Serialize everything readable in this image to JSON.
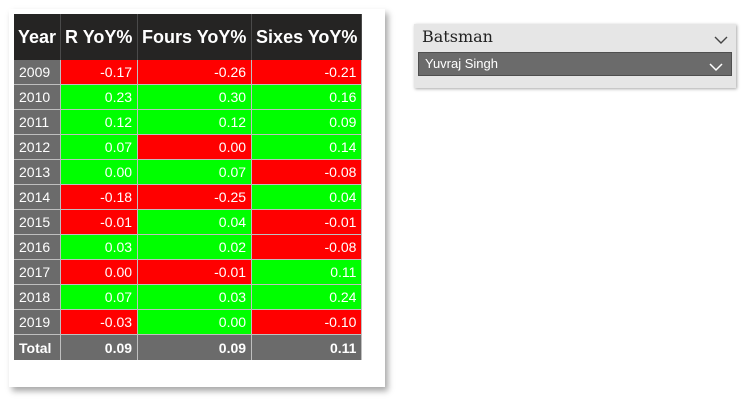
{
  "table": {
    "columns": [
      "Year",
      "R YoY%",
      "Fours YoY%",
      "Sixes YoY%"
    ],
    "rows": [
      {
        "year": "2009",
        "r": "-0.17",
        "fours": "-0.26",
        "sixes": "-0.21"
      },
      {
        "year": "2010",
        "r": "0.23",
        "fours": "0.30",
        "sixes": "0.16"
      },
      {
        "year": "2011",
        "r": "0.12",
        "fours": "0.12",
        "sixes": "0.09"
      },
      {
        "year": "2012",
        "r": "0.07",
        "fours": "0.00",
        "sixes": "0.14"
      },
      {
        "year": "2013",
        "r": "0.00",
        "fours": "0.07",
        "sixes": "-0.08"
      },
      {
        "year": "2014",
        "r": "-0.18",
        "fours": "-0.25",
        "sixes": "0.04"
      },
      {
        "year": "2015",
        "r": "-0.01",
        "fours": "0.04",
        "sixes": "-0.01"
      },
      {
        "year": "2016",
        "r": "0.03",
        "fours": "0.02",
        "sixes": "-0.08"
      },
      {
        "year": "2017",
        "r": "0.00",
        "fours": "-0.01",
        "sixes": "0.11"
      },
      {
        "year": "2018",
        "r": "0.07",
        "fours": "0.03",
        "sixes": "0.24"
      },
      {
        "year": "2019",
        "r": "-0.03",
        "fours": "0.00",
        "sixes": "-0.10"
      }
    ],
    "cell_colors": [
      [
        "neg",
        "neg",
        "neg"
      ],
      [
        "pos",
        "pos",
        "pos"
      ],
      [
        "pos",
        "pos",
        "pos"
      ],
      [
        "pos",
        "neg",
        "pos"
      ],
      [
        "pos",
        "pos",
        "neg"
      ],
      [
        "neg",
        "neg",
        "pos"
      ],
      [
        "neg",
        "pos",
        "neg"
      ],
      [
        "pos",
        "pos",
        "neg"
      ],
      [
        "neg",
        "neg",
        "pos"
      ],
      [
        "pos",
        "pos",
        "pos"
      ],
      [
        "neg",
        "pos",
        "neg"
      ]
    ],
    "total": {
      "label": "Total",
      "r": "0.09",
      "fours": "0.09",
      "sixes": "0.11"
    }
  },
  "slicer": {
    "title": "Batsman",
    "selected": "Yuvraj Singh",
    "icons": [
      "chevron-down-icon",
      "chevron-down-icon"
    ]
  },
  "colors": {
    "positive": "#00ff00",
    "negative": "#ff0000",
    "header_bg": "#252423",
    "year_bg": "#6b6b6b"
  }
}
